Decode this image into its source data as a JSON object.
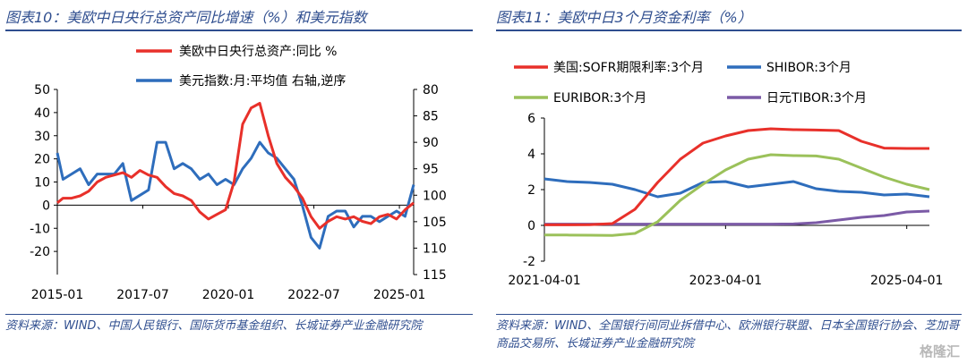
{
  "left": {
    "title": "图表10：美欧中日央行总资产同比增速（%）和美元指数",
    "source": "资料来源：WIND、中国人民银行、国际货币基金组织、长城证券产业金融研究院",
    "chart_data": {
      "type": "line",
      "x_tick_labels": [
        "2015-01",
        "2017-07",
        "2020-01",
        "2022-07",
        "2025-01"
      ],
      "x": [
        "2015-01",
        "2015-03",
        "2015-06",
        "2015-09",
        "2015-12",
        "2016-03",
        "2016-06",
        "2016-09",
        "2016-12",
        "2017-03",
        "2017-06",
        "2017-09",
        "2017-12",
        "2018-03",
        "2018-06",
        "2018-09",
        "2018-12",
        "2019-03",
        "2019-06",
        "2019-09",
        "2019-12",
        "2020-03",
        "2020-06",
        "2020-09",
        "2020-12",
        "2021-03",
        "2021-06",
        "2021-09",
        "2021-12",
        "2022-03",
        "2022-06",
        "2022-09",
        "2022-12",
        "2023-03",
        "2023-06",
        "2023-09",
        "2023-12",
        "2024-03",
        "2024-06",
        "2024-09",
        "2024-12",
        "2025-03",
        "2025-06"
      ],
      "y_left_range": [
        -30,
        50
      ],
      "y_left_ticks": [
        "50",
        "40",
        "30",
        "20",
        "10",
        "0",
        "-10",
        "-20"
      ],
      "y_right_range": [
        115,
        80
      ],
      "y_right_reversed": true,
      "y_right_ticks": [
        "80",
        "85",
        "90",
        "95",
        "100",
        "105",
        "110",
        "115"
      ],
      "legend_placement": "top-center",
      "series": [
        {
          "name": "美欧中日央行总资产:同比 %",
          "axis": "left",
          "color": "#e8302a",
          "values": [
            1,
            3,
            3,
            4,
            6,
            10,
            12,
            13,
            14,
            12,
            15,
            13,
            12,
            8,
            5,
            4,
            2,
            -3,
            -6,
            -4,
            -2,
            10,
            35,
            42,
            44,
            30,
            18,
            12,
            8,
            3,
            -5,
            -10,
            -7,
            -5,
            -6,
            -5,
            -7,
            -8,
            -5,
            -4,
            -6,
            -2,
            1
          ]
        },
        {
          "name": "美元指数:月:平均值 右轴,逆序",
          "axis": "right",
          "color": "#2e6dbc",
          "values": [
            92,
            97,
            96,
            95,
            98,
            96,
            96,
            96,
            94,
            101,
            100,
            99,
            90,
            90,
            95,
            94,
            95,
            97,
            96,
            98,
            97,
            98,
            95,
            93,
            90,
            92,
            93,
            95,
            97,
            102,
            108,
            110,
            104,
            103,
            103,
            106,
            104,
            104,
            105,
            104,
            103,
            104,
            98
          ]
        }
      ]
    }
  },
  "right": {
    "title": "图表11：美欧中日3个月资金利率（%）",
    "source": "资料来源：WIND、全国银行间同业拆借中心、欧洲银行联盟、日本全国银行协会、芝加哥商品交易所、长城证券产业金融研究院",
    "chart_data": {
      "type": "line",
      "x_tick_labels": [
        "2021-04-01",
        "2023-04-01",
        "2025-04-01"
      ],
      "x": [
        "2021-04",
        "2021-07",
        "2021-10",
        "2022-01",
        "2022-04",
        "2022-07",
        "2022-10",
        "2023-01",
        "2023-04",
        "2023-07",
        "2023-10",
        "2024-01",
        "2024-04",
        "2024-07",
        "2024-10",
        "2025-01",
        "2025-04",
        "2025-07"
      ],
      "y_range": [
        -2,
        6
      ],
      "y_ticks": [
        "6",
        "4",
        "2",
        "0",
        "-2"
      ],
      "legend_placement": "top",
      "series": [
        {
          "name": "美国:SOFR期限利率:3个月",
          "color": "#e8302a",
          "values": [
            0.03,
            0.03,
            0.04,
            0.1,
            0.9,
            2.4,
            3.7,
            4.6,
            5.0,
            5.3,
            5.4,
            5.35,
            5.33,
            5.3,
            4.7,
            4.32,
            4.3,
            4.3
          ]
        },
        {
          "name": "SHIBOR:3个月",
          "color": "#2e6dbc",
          "values": [
            2.6,
            2.45,
            2.4,
            2.3,
            2.0,
            1.6,
            1.8,
            2.4,
            2.45,
            2.15,
            2.3,
            2.45,
            2.05,
            1.9,
            1.85,
            1.7,
            1.75,
            1.6
          ]
        },
        {
          "name": "EURIBOR:3个月",
          "color": "#9bc15a",
          "values": [
            -0.54,
            -0.54,
            -0.55,
            -0.56,
            -0.45,
            0.2,
            1.4,
            2.3,
            3.1,
            3.7,
            3.95,
            3.9,
            3.88,
            3.7,
            3.2,
            2.7,
            2.3,
            2.0
          ]
        },
        {
          "name": "日元TIBOR:3个月",
          "color": "#7b5aa6",
          "values": [
            0.07,
            0.07,
            0.07,
            0.07,
            0.07,
            0.07,
            0.07,
            0.07,
            0.07,
            0.07,
            0.07,
            0.08,
            0.15,
            0.3,
            0.45,
            0.55,
            0.75,
            0.8
          ]
        }
      ]
    }
  },
  "watermark": "格隆汇"
}
